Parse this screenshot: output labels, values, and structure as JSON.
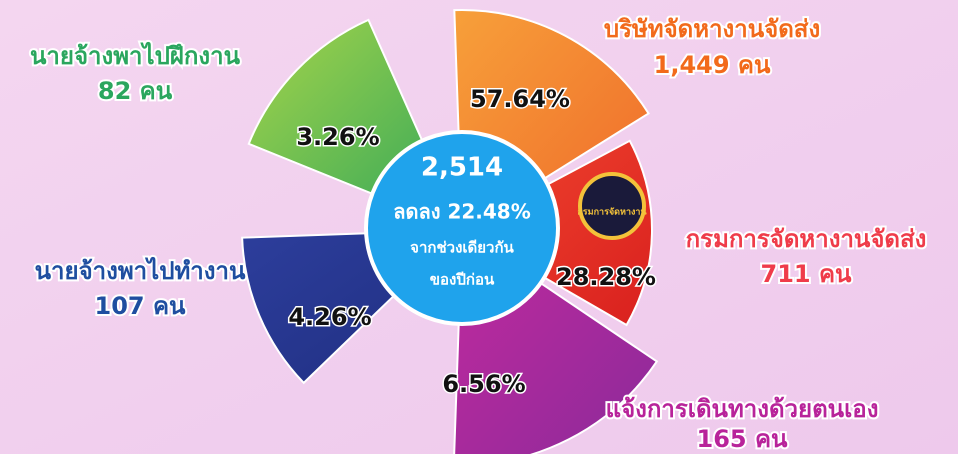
{
  "center": {
    "total": "2,514",
    "change": "ลดลง 22.48%",
    "note": [
      "จากช่วงเดียวกัน",
      "ของปีก่อน"
    ]
  },
  "segments": [
    {
      "label": "บริษัทจัดหางานจัดส่ง",
      "count": "1,449  คน",
      "percent": "57.64%"
    },
    {
      "label": "กรมการจัดหางานจัดส่ง",
      "count": "711 คน",
      "percent": "28.28%",
      "logo_text": "กรมการจัดหางาน"
    },
    {
      "label": "แจ้งการเดินทางด้วยตนเอง",
      "count": "165 คน",
      "percent": "6.56%"
    },
    {
      "label": "นายจ้างพาไปทำงาน",
      "count": "107 คน",
      "percent": "4.26%"
    },
    {
      "label": "นายจ้างพาไปฝึกงาน",
      "count": "82 คน",
      "percent": "3.26%"
    }
  ]
}
